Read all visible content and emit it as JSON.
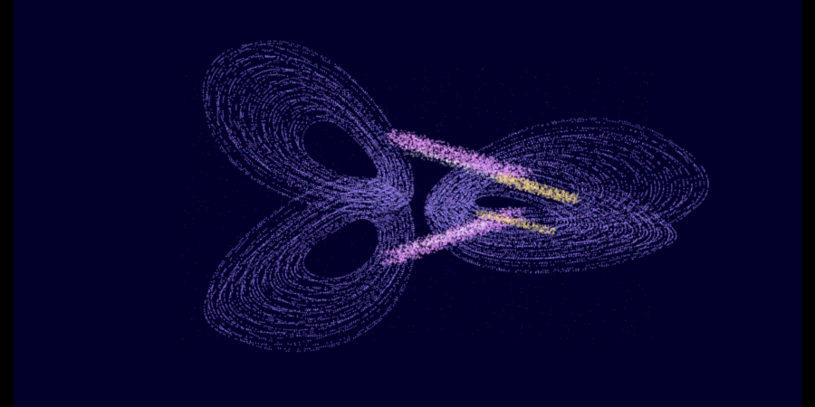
{
  "scene": {
    "subject": "strange-attractor-visualization",
    "background_color": "#02002a",
    "frame_color": "#000000",
    "palette": {
      "trail_primary": "#9a8cff",
      "trail_secondary": "#c89bff",
      "highlight_pink": "#f0a0ff",
      "highlight_yellow": "#ffe38a",
      "highlight_white": "#ffffff"
    },
    "wings": 4,
    "has_visible_text": false
  }
}
